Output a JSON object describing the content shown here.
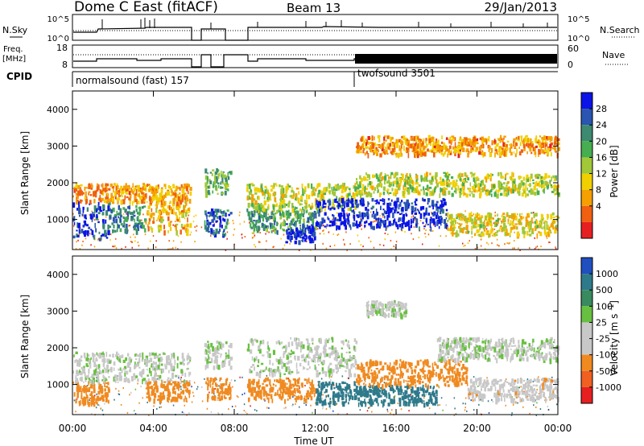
{
  "header": {
    "station": "Dome C East (fitACF)",
    "beam": "Beam 13",
    "date": "29/Jan/2013"
  },
  "top_panels": {
    "nsky_label": "N.Sky",
    "nsky_ticks": [
      "10^5",
      "10^0"
    ],
    "nsearch_label": "N.Search",
    "nsearch_ticks": [
      "10^5",
      "10^0"
    ],
    "freq_label_1": "Freq.",
    "freq_label_2": "[MHz]",
    "freq_ticks": [
      "18",
      "8"
    ],
    "nave_label": "Nave",
    "nave_ticks": [
      "60",
      "0"
    ],
    "cpid_label": "CPID",
    "cpid_1": "normalsound (fast) 157",
    "cpid_2": "twofsound 3501"
  },
  "power_panel": {
    "ylabel": "Slant Range [km]",
    "yticks": [
      "4000",
      "3000",
      "2000",
      "1000"
    ],
    "colorbar_label": "Power [dB]",
    "colorbar_ticks": [
      "28",
      "24",
      "20",
      "16",
      "12",
      "8",
      "4"
    ],
    "colors": [
      "#0a14e6",
      "#2a55b0",
      "#3d8a70",
      "#46ae50",
      "#a0c838",
      "#f0d000",
      "#f5a000",
      "#f06010",
      "#e62020"
    ]
  },
  "velocity_panel": {
    "ylabel": "Slant Range [km]",
    "yticks": [
      "4000",
      "3000",
      "2000",
      "1000"
    ],
    "colorbar_label": "Velocity [m s^-1]",
    "colorbar_ticks": [
      "1000",
      "500",
      "100",
      "25",
      "-25",
      "-100",
      "-500",
      "-1000"
    ],
    "colors": [
      "#2050c0",
      "#2e7a8a",
      "#3a8a60",
      "#68c040",
      "#c8c8c8",
      "#c8c8c8",
      "#f08a20",
      "#f06020",
      "#e62020"
    ]
  },
  "xaxis": {
    "label": "Time UT",
    "ticks": [
      "00:00",
      "04:00",
      "08:00",
      "12:00",
      "16:00",
      "20:00",
      "00:00"
    ]
  },
  "chart_data": [
    {
      "type": "heatmap",
      "name": "power",
      "xlim": [
        0,
        24
      ],
      "ylim": [
        180,
        4500
      ],
      "zlim": [
        0,
        30
      ],
      "x_unit": "hours UT",
      "bands": [
        {
          "x": [
            0.0,
            1.8
          ],
          "y": [
            500,
            1500
          ],
          "z": 26
        },
        {
          "x": [
            1.8,
            3.6
          ],
          "y": [
            700,
            1400
          ],
          "z": 22
        },
        {
          "x": [
            3.6,
            5.8
          ],
          "y": [
            700,
            1600
          ],
          "z": 10
        },
        {
          "x": [
            0.0,
            5.8
          ],
          "y": [
            1500,
            2000
          ],
          "z": 8
        },
        {
          "x": [
            6.5,
            7.8
          ],
          "y": [
            600,
            1300
          ],
          "z": 24
        },
        {
          "x": [
            6.5,
            7.8
          ],
          "y": [
            1700,
            2400
          ],
          "z": 18
        },
        {
          "x": [
            8.6,
            12.0
          ],
          "y": [
            700,
            1300
          ],
          "z": 20
        },
        {
          "x": [
            10.5,
            12.0
          ],
          "y": [
            400,
            900
          ],
          "z": 28
        },
        {
          "x": [
            8.6,
            14.0
          ],
          "y": [
            1300,
            2000
          ],
          "z": 14
        },
        {
          "x": [
            12.0,
            18.5
          ],
          "y": [
            800,
            1600
          ],
          "z": 28
        },
        {
          "x": [
            14.0,
            24.0
          ],
          "y": [
            1700,
            2300
          ],
          "z": 14
        },
        {
          "x": [
            18.5,
            24.0
          ],
          "y": [
            600,
            1200
          ],
          "z": 12
        },
        {
          "x": [
            14.0,
            24.0
          ],
          "y": [
            2800,
            3300
          ],
          "z": 8
        }
      ]
    },
    {
      "type": "heatmap",
      "name": "velocity",
      "xlim": [
        0,
        24
      ],
      "ylim": [
        180,
        4500
      ],
      "zlim": [
        -1000,
        1000
      ],
      "x_unit": "hours UT",
      "bands": [
        {
          "x": [
            0.0,
            1.8
          ],
          "y": [
            500,
            1100
          ],
          "z": -200
        },
        {
          "x": [
            0.0,
            5.8
          ],
          "y": [
            1100,
            1900
          ],
          "z": 0
        },
        {
          "x": [
            3.6,
            5.8
          ],
          "y": [
            600,
            1100
          ],
          "z": -300
        },
        {
          "x": [
            6.5,
            7.8
          ],
          "y": [
            600,
            1200
          ],
          "z": -300
        },
        {
          "x": [
            6.5,
            7.8
          ],
          "y": [
            1500,
            2200
          ],
          "z": 0
        },
        {
          "x": [
            8.6,
            12.0
          ],
          "y": [
            600,
            1200
          ],
          "z": -200
        },
        {
          "x": [
            8.6,
            14.0
          ],
          "y": [
            1300,
            2300
          ],
          "z": 0
        },
        {
          "x": [
            12.0,
            14.0
          ],
          "y": [
            500,
            1100
          ],
          "z": 300
        },
        {
          "x": [
            14.0,
            18.0
          ],
          "y": [
            500,
            1000
          ],
          "z": 300
        },
        {
          "x": [
            14.0,
            19.5
          ],
          "y": [
            1000,
            1700
          ],
          "z": -300
        },
        {
          "x": [
            18.0,
            24.0
          ],
          "y": [
            1700,
            2300
          ],
          "z": 0
        },
        {
          "x": [
            19.5,
            24.0
          ],
          "y": [
            600,
            1200
          ],
          "z": -50
        },
        {
          "x": [
            14.5,
            16.5
          ],
          "y": [
            2900,
            3300
          ],
          "z": 0
        }
      ]
    }
  ]
}
